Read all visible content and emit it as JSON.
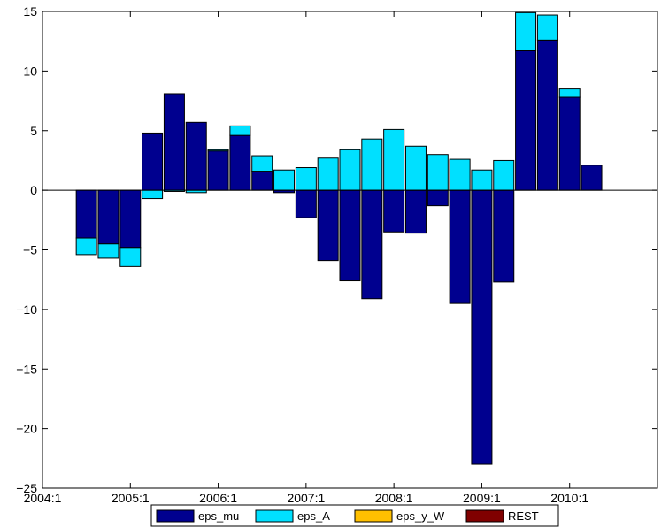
{
  "chart_data": {
    "type": "bar",
    "stacked": true,
    "x_tick_labels": [
      "2004:1",
      "2005:1",
      "2006:1",
      "2007:1",
      "2008:1",
      "2009:1",
      "2010:1"
    ],
    "x_tick_positions": [
      0,
      4,
      8,
      12,
      16,
      20,
      24
    ],
    "xlim": [
      0,
      28
    ],
    "ylim": [
      -25,
      15
    ],
    "y_ticks": [
      -25,
      -20,
      -15,
      -10,
      -5,
      0,
      5,
      10,
      15
    ],
    "y_tick_labels": [
      "−25",
      "−20",
      "−15",
      "−10",
      "−5",
      "0",
      "5",
      "10",
      "15"
    ],
    "x": [
      2,
      3,
      4,
      5,
      6,
      7,
      8,
      9,
      10,
      11,
      12,
      13,
      14,
      15,
      16,
      17,
      18,
      19,
      20,
      21,
      22,
      23,
      24,
      25
    ],
    "series": [
      {
        "name": "eps_mu",
        "color": "#00008f",
        "values": [
          -4.0,
          -4.5,
          -4.8,
          4.8,
          8.1,
          5.7,
          3.3,
          4.6,
          1.6,
          -0.2,
          -2.3,
          -5.9,
          -7.6,
          -9.1,
          -3.5,
          -3.6,
          -1.3,
          -9.5,
          -23.0,
          -7.7,
          11.7,
          12.6,
          7.8,
          2.1
        ]
      },
      {
        "name": "eps_A",
        "color": "#00e0ff",
        "values": [
          -1.4,
          -1.2,
          -1.6,
          -0.7,
          -0.1,
          -0.2,
          0.1,
          0.8,
          1.3,
          1.7,
          1.9,
          2.7,
          3.4,
          4.3,
          5.1,
          3.7,
          3.0,
          2.6,
          1.7,
          2.5,
          3.2,
          2.1,
          0.7,
          0.0
        ]
      },
      {
        "name": "eps_y_W",
        "color": "#ffc000",
        "values": [
          0,
          0,
          0,
          0,
          0,
          0,
          0,
          0,
          0,
          0,
          0,
          0,
          0,
          0,
          0,
          0,
          0,
          0,
          0,
          0,
          0,
          0,
          0,
          0
        ]
      },
      {
        "name": "REST",
        "color": "#800000",
        "values": [
          0,
          0,
          0,
          0,
          0,
          0,
          0,
          0,
          0,
          0,
          0,
          0,
          0,
          0,
          0,
          0,
          0,
          0,
          0,
          0,
          0,
          0,
          0,
          0
        ]
      }
    ],
    "grid": false,
    "legend_position": "bottom-center, horizontal"
  }
}
